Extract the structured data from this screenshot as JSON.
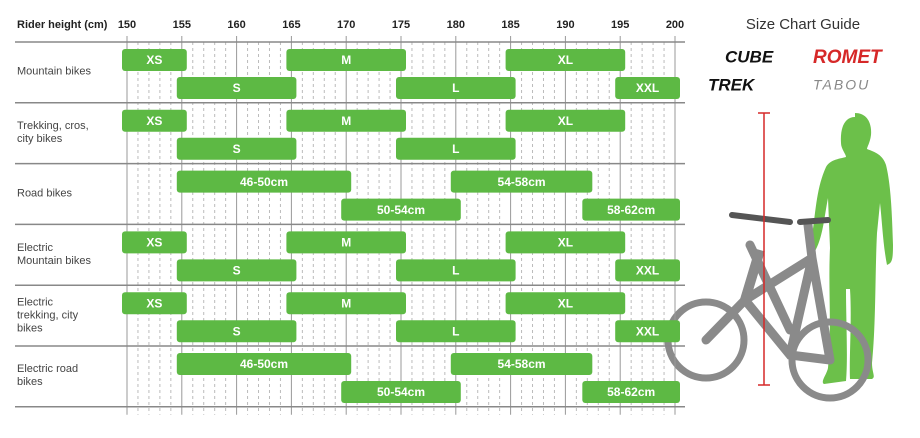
{
  "chart_data": {
    "type": "range",
    "x_label": "Rider height (cm)",
    "xlim": [
      150,
      200
    ],
    "xticks": [
      150,
      155,
      160,
      165,
      170,
      175,
      180,
      185,
      190,
      195,
      200
    ],
    "xminorticks": [
      151,
      152,
      153,
      154,
      156,
      157,
      158,
      159,
      161,
      162,
      163,
      164,
      166,
      167,
      168,
      169,
      171,
      172,
      173,
      174,
      176,
      177,
      178,
      179,
      181,
      182,
      183,
      184,
      186,
      187,
      188,
      189,
      191,
      192,
      193,
      194,
      196,
      197,
      198,
      199
    ],
    "color": "#5db944",
    "groups": [
      {
        "label": "Mountain bikes",
        "bars": [
          {
            "label": "XS",
            "start": 150,
            "end": 155
          },
          {
            "label": "S",
            "start": 155,
            "end": 165
          },
          {
            "label": "M",
            "start": 165,
            "end": 175
          },
          {
            "label": "L",
            "start": 175,
            "end": 185
          },
          {
            "label": "XL",
            "start": 185,
            "end": 195
          },
          {
            "label": "XXL",
            "start": 195,
            "end": 200
          }
        ]
      },
      {
        "label": "Trekking, cros, city bikes",
        "bars": [
          {
            "label": "XS",
            "start": 150,
            "end": 155
          },
          {
            "label": "S",
            "start": 155,
            "end": 165
          },
          {
            "label": "M",
            "start": 165,
            "end": 175
          },
          {
            "label": "L",
            "start": 175,
            "end": 185
          },
          {
            "label": "XL",
            "start": 185,
            "end": 195
          }
        ]
      },
      {
        "label": "Road bikes",
        "bars": [
          {
            "label": "46-50cm",
            "start": 155,
            "end": 170
          },
          {
            "label": "50-54cm",
            "start": 170,
            "end": 180
          },
          {
            "label": "54-58cm",
            "start": 180,
            "end": 192
          },
          {
            "label": "58-62cm",
            "start": 192,
            "end": 200
          }
        ]
      },
      {
        "label": "Electric Mountain bikes",
        "bars": [
          {
            "label": "XS",
            "start": 150,
            "end": 155
          },
          {
            "label": "S",
            "start": 155,
            "end": 165
          },
          {
            "label": "M",
            "start": 165,
            "end": 175
          },
          {
            "label": "L",
            "start": 175,
            "end": 185
          },
          {
            "label": "XL",
            "start": 185,
            "end": 195
          },
          {
            "label": "XXL",
            "start": 195,
            "end": 200
          }
        ]
      },
      {
        "label": "Electric trekking, city bikes",
        "bars": [
          {
            "label": "XS",
            "start": 150,
            "end": 155
          },
          {
            "label": "S",
            "start": 155,
            "end": 165
          },
          {
            "label": "M",
            "start": 165,
            "end": 175
          },
          {
            "label": "L",
            "start": 175,
            "end": 185
          },
          {
            "label": "XL",
            "start": 185,
            "end": 195
          },
          {
            "label": "XXL",
            "start": 195,
            "end": 200
          }
        ]
      },
      {
        "label": "Electric road bikes",
        "bars": [
          {
            "label": "46-50cm",
            "start": 155,
            "end": 170
          },
          {
            "label": "50-54cm",
            "start": 170,
            "end": 180
          },
          {
            "label": "54-58cm",
            "start": 180,
            "end": 192
          },
          {
            "label": "58-62cm",
            "start": 192,
            "end": 200
          }
        ]
      }
    ]
  },
  "guide": {
    "title": "Size Chart Guide",
    "brands": [
      "CUBE",
      "ROMET",
      "TREK",
      "TABOU"
    ]
  }
}
